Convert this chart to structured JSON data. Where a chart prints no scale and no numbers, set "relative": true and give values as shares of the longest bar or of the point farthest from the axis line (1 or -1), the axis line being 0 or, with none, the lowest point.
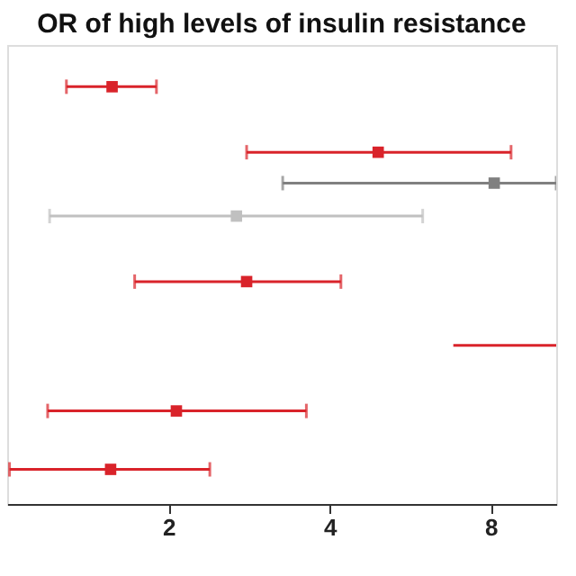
{
  "chart_data": {
    "type": "scatter",
    "title": "OR of high levels of insulin resistance",
    "relative": true,
    "series": [
      {
        "marker": "square",
        "x": [
          1.57,
          4.93,
          8.12,
          2.68,
          2.8,
          2.07,
          1.56
        ],
        "values": [
          1,
          0.843,
          0.769,
          0.69,
          0.533,
          0.223,
          0.083
        ],
        "xerrors": [
          [
            1.29,
            1.9
          ],
          [
            2.8,
            8.73
          ],
          [
            3.27,
            10.6
          ],
          [
            1.2,
            5.97
          ],
          [
            1.73,
            4.2
          ],
          [
            1.19,
            3.62
          ],
          [
            1.01,
            2.39
          ]
        ],
        "colors": [
          "#d9232a",
          "#d9232a",
          "#808080",
          "#c0c0c0",
          "#d9232a",
          "#d9232a",
          "#d9232a"
        ]
      },
      {
        "type": "line",
        "x": [
          6.81,
          10.6
        ],
        "values": [
          0.38,
          0.38
        ],
        "color": "#d9232a"
      }
    ],
    "xlim": [
      1,
      10.6
    ],
    "xticks": [
      2,
      4,
      8
    ],
    "log": "x",
    "grid": false,
    "tick_labels": "x"
  }
}
